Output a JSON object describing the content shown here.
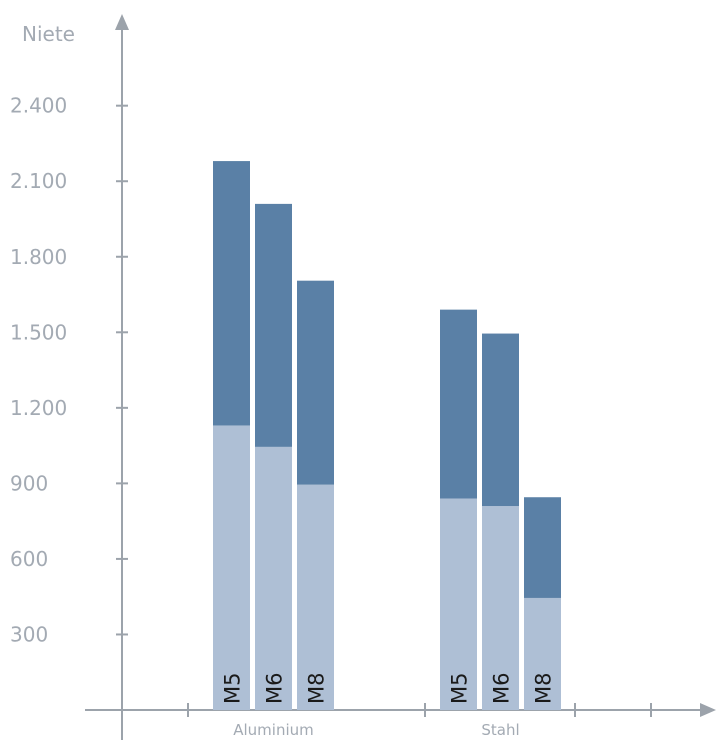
{
  "chart_data": {
    "type": "bar",
    "stacked": true,
    "ylabel": "Niete",
    "yticks": [
      "300",
      "600",
      "900",
      "1.200",
      "1.500",
      "1.800",
      "2.100",
      "2.400"
    ],
    "ylim": [
      0,
      2400
    ],
    "groups": [
      {
        "name": "Aluminium",
        "bars": [
          {
            "label": "M5",
            "lower": 1130,
            "total": 2180
          },
          {
            "label": "M6",
            "lower": 1045,
            "total": 2010
          },
          {
            "label": "M8",
            "lower": 895,
            "total": 1705
          }
        ]
      },
      {
        "name": "Stahl",
        "bars": [
          {
            "label": "M5",
            "lower": 840,
            "total": 1590
          },
          {
            "label": "M6",
            "lower": 810,
            "total": 1495
          },
          {
            "label": "M8",
            "lower": 445,
            "total": 845
          }
        ]
      }
    ],
    "colors": {
      "lower": "#aebfd5",
      "upper": "#5a80a6",
      "axis": "#9ca3ab",
      "text": "#a3aab3"
    },
    "grid": false,
    "legend": "none"
  }
}
